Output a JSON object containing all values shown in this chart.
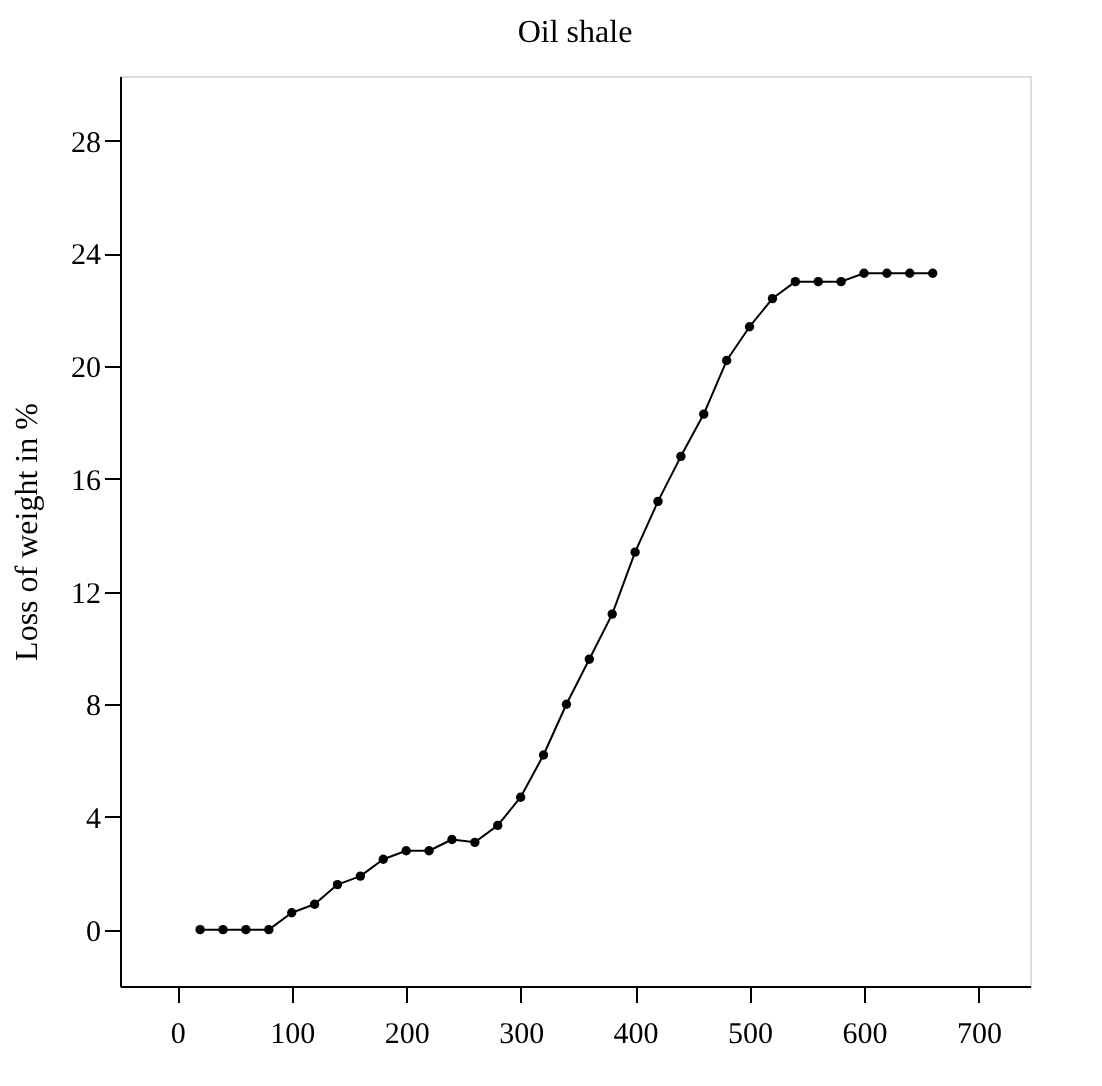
{
  "chart_data": {
    "type": "line",
    "title": "Oil shale",
    "ylabel": "Loss of weight in %",
    "x": [
      20,
      40,
      60,
      80,
      100,
      120,
      140,
      160,
      180,
      200,
      220,
      240,
      260,
      280,
      300,
      320,
      340,
      360,
      380,
      400,
      420,
      440,
      460,
      480,
      500,
      520,
      540,
      560,
      580,
      600,
      620,
      640,
      660
    ],
    "series": [
      {
        "color": "#000000",
        "values": [
          0,
          0,
          0,
          0,
          0.6,
          0.9,
          1.6,
          1.9,
          2.5,
          2.8,
          2.8,
          3.2,
          3.1,
          3.7,
          4.7,
          6.2,
          8.0,
          9.6,
          11.2,
          13.4,
          15.2,
          16.8,
          18.3,
          20.2,
          21.4,
          22.4,
          23.0,
          23.0,
          23.0,
          23.3,
          23.3,
          23.3,
          23.3
        ]
      }
    ],
    "xlim": [
      -50,
      745
    ],
    "xticks": [
      0,
      100,
      200,
      300,
      400,
      500,
      600,
      700
    ],
    "ylim": [
      -2,
      30.3
    ],
    "yticks": [
      0,
      4,
      8,
      12,
      16,
      20,
      24,
      28
    ],
    "grid": false,
    "marker": "circle",
    "line_style": "solid"
  }
}
